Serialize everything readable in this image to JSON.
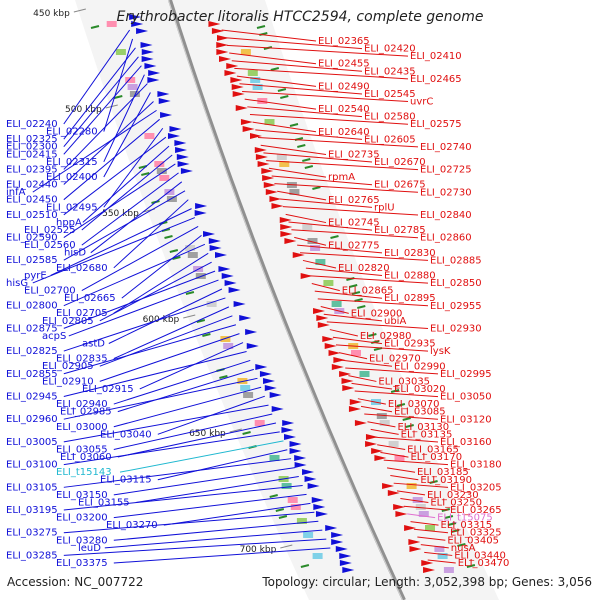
{
  "title": "Erythrobacter litoralis HTCC2594, complete genome",
  "footer": {
    "accession": "Accession: NC_007722",
    "topology": "Topology: circular; Length: 3,052,398 bp; Genes: 3,056"
  },
  "colors": {
    "left_genes": "#1010d8",
    "right_genes": "#e01010",
    "rna_left": "#20b8d0",
    "rna_right": "#f0a0e0",
    "backbone": "#909090",
    "tick_line": "#2a8a2a"
  },
  "position_ticks": [
    "450 kbp",
    "500 kbp",
    "550 kbp",
    "600 kbp",
    "650 kbp",
    "700 kbp"
  ],
  "left_labels": [
    "ELI_02240",
    "ELI_02280",
    "ELI_02325",
    "ELI_02300",
    "ELI_02415",
    "ELI_02315",
    "ELI_02395",
    "ELI_02400",
    "ELI_02440",
    "infA",
    "ELI_02450",
    "ELI_02495",
    "ELI_02510",
    "hppA",
    "ELI_02525",
    "ELI_02590",
    "ELI_02560",
    "hisD",
    "ELI_02585",
    "ELI_02680",
    "pyrE",
    "hisG",
    "ELI_02700",
    "ELI_02665",
    "ELI_02800",
    "ELI_02705",
    "ELI_02805",
    "ELI_02875",
    "acpS",
    "astD",
    "ELI_02825",
    "ELI_02835",
    "ELI_02905",
    "ELI_02855",
    "ELI_02910",
    "ELI_02915",
    "ELI_02945",
    "ELI_02940",
    "ELI_02985",
    "ELI_02960",
    "ELI_03000",
    "ELI_03040",
    "ELI_03005",
    "ELI_03055",
    "ELI_03060",
    "ELI_03100",
    "ELI_t15143",
    "ELI_03115",
    "ELI_03105",
    "ELI_03150",
    "ELI_03155",
    "ELI_03195",
    "ELI_03200",
    "ELI_03270",
    "ELI_03275",
    "ELI_03280",
    "leuD",
    "ELI_03285",
    "ELI_03375"
  ],
  "right_labels": [
    "ELI_02365",
    "ELI_02420",
    "ELI_02410",
    "ELI_02455",
    "ELI_02435",
    "ELI_02465",
    "ELI_02490",
    "ELI_02545",
    "uvrC",
    "ELI_02540",
    "ELI_02580",
    "ELI_02575",
    "ELI_02640",
    "ELI_02605",
    "ELI_02740",
    "ELI_02735",
    "ELI_02670",
    "ELI_02725",
    "rpmA",
    "ELI_02675",
    "ELI_02730",
    "ELI_02765",
    "rplU",
    "ELI_02840",
    "ELI_02745",
    "ELI_02785",
    "ELI_02860",
    "ELI_02775",
    "ELI_02830",
    "ELI_02885",
    "ELI_02820",
    "ELI_02880",
    "ELI_02850",
    "ELI_02865",
    "ELI_02895",
    "ELI_02955",
    "ELI_02900",
    "ubiA",
    "ELI_02930",
    "ELI_02980",
    "ELI_02935",
    "lysK",
    "ELI_02970",
    "ELI_02990",
    "ELI_02995",
    "ELI_03035",
    "ELI_03020",
    "ELI_03050",
    "ELI_03070",
    "ELI_03085",
    "ELI_03120",
    "ELI_03130",
    "ELI_03135",
    "ELI_03160",
    "ELI_03165",
    "ELI_03170",
    "ELI_03180",
    "ELI_03185",
    "ELI_03190",
    "ELI_03205",
    "ELI_03230",
    "ELI_03250",
    "ELI_03265",
    "ELI_t15075",
    "ELI_03315",
    "ELI_03325",
    "ELI_03405",
    "nusA",
    "ELI_03440",
    "ELI_03470"
  ]
}
